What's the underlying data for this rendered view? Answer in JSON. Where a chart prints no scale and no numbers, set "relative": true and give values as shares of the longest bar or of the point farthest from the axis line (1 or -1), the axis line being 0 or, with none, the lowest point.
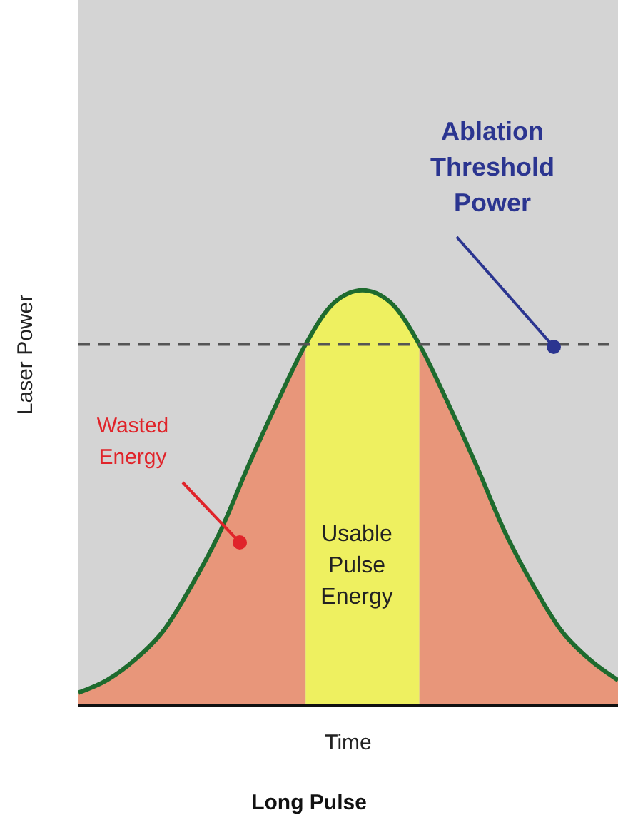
{
  "chart_data": {
    "type": "area",
    "relative": true,
    "xlabel": "Time",
    "ylabel": "Laser Power",
    "categories": [
      null,
      null,
      null,
      null,
      null,
      null,
      null,
      null,
      null,
      null,
      null,
      null,
      null,
      null,
      null,
      null,
      null,
      null,
      null,
      null
    ],
    "series": [
      {
        "color": "#e8967a",
        "values": [
          0.03,
          0.06,
          0.11,
          0.18,
          0.29,
          0.42,
          0.58,
          0.73,
          0.87,
          null,
          null,
          null,
          0.87,
          0.73,
          0.58,
          0.42,
          0.29,
          0.18,
          0.11,
          0.06
        ]
      },
      {
        "color": "#eef060",
        "values": [
          null,
          null,
          null,
          null,
          null,
          null,
          null,
          null,
          0.87,
          0.97,
          1,
          0.97,
          0.87,
          null,
          null,
          null,
          null,
          null,
          null,
          null
        ]
      },
      {
        "type": "line",
        "color": "#1e6b2e",
        "values": [
          0.03,
          0.06,
          0.11,
          0.18,
          0.29,
          0.42,
          0.58,
          0.73,
          0.87,
          0.97,
          1,
          0.97,
          0.87,
          0.73,
          0.58,
          0.42,
          0.29,
          0.18,
          0.11,
          0.06
        ]
      }
    ],
    "ref_lines": [
      {
        "axis": "y",
        "value": 0.87,
        "label": "Ablation Threshold Power",
        "color": "#555555",
        "line_style": "dashed"
      }
    ],
    "annotations": [
      "Wasted Energy",
      "Usable Pulse Energy",
      "Long Pulse"
    ]
  }
}
